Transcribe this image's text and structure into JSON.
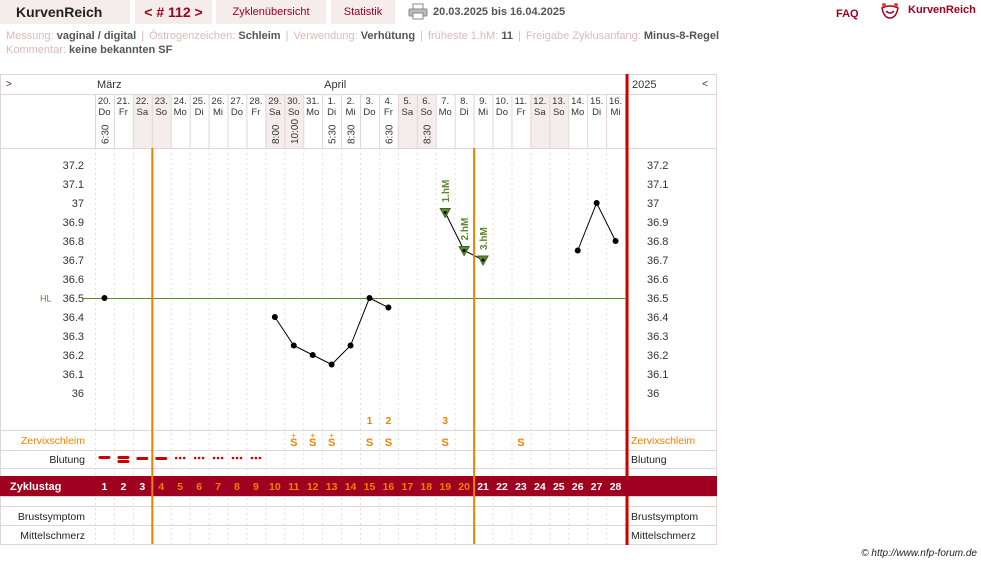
{
  "topbar": {
    "brand": "KurvenReich",
    "cycle_nav": "< # 112 >",
    "cycle_overview": "Zyklenübersicht",
    "statistics": "Statistik",
    "date_range": "20.03.2025 bis 16.04.2025",
    "faq": "FAQ",
    "logo_text": "KurvenReich"
  },
  "info": {
    "measurement_label": "Messung:",
    "measurement_value": "vaginal / digital",
    "estrogen_label": "Östrogenzeichen:",
    "estrogen_value": "Schleim",
    "usage_label": "Verwendung:",
    "usage_value": "Verhütung",
    "earliest_label": "früheste 1.hM:",
    "earliest_value": "11",
    "release_label": "Freigabe Zyklusanfang:",
    "release_value": "Minus-8-Regel",
    "comment_label": "Kommentar:",
    "comment_value": "keine bekannten SF"
  },
  "chart_data": {
    "type": "line",
    "header_left": ">",
    "header_right_arrow": "<",
    "year": "2025",
    "months": [
      {
        "label": "März",
        "day_index": 0
      },
      {
        "label": "April",
        "day_index": 12
      }
    ],
    "dates": [
      "20.",
      "21.",
      "22.",
      "23.",
      "24.",
      "25.",
      "26.",
      "27.",
      "28.",
      "29.",
      "30.",
      "31.",
      "1.",
      "2.",
      "3.",
      "4.",
      "5.",
      "6.",
      "7.",
      "8.",
      "9.",
      "10.",
      "11.",
      "12.",
      "13.",
      "14.",
      "15.",
      "16."
    ],
    "weekdays": [
      "Do",
      "Fr",
      "Sa",
      "So",
      "Mo",
      "Di",
      "Mi",
      "Do",
      "Fr",
      "Sa",
      "So",
      "Mo",
      "Di",
      "Mi",
      "Do",
      "Fr",
      "Sa",
      "So",
      "Mo",
      "Di",
      "Mi",
      "Do",
      "Fr",
      "Sa",
      "So",
      "Mo",
      "Di",
      "Mi"
    ],
    "weekend_days": [
      2,
      3,
      9,
      10,
      16,
      17,
      23,
      24
    ],
    "times": [
      "6:30",
      "",
      "",
      "",
      "",
      "",
      "",
      "",
      "",
      "8:00",
      "10:00",
      "",
      "5:30",
      "8:30",
      "",
      "6:30",
      "",
      "8:30",
      "",
      "",
      "",
      "",
      "",
      "",
      "",
      "",
      "",
      ""
    ],
    "cycle_days": [
      "1",
      "2",
      "3",
      "4",
      "5",
      "6",
      "7",
      "8",
      "9",
      "10",
      "11",
      "12",
      "13",
      "14",
      "15",
      "16",
      "17",
      "18",
      "19",
      "20",
      "21",
      "22",
      "23",
      "24",
      "25",
      "26",
      "27",
      "28"
    ],
    "y_ticks": [
      "37.2",
      "37.1",
      "37",
      "36.9",
      "36.8",
      "36.7",
      "36.6",
      "36.5",
      "36.4",
      "36.3",
      "36.2",
      "36.1",
      "36"
    ],
    "ylim": [
      36.0,
      37.2
    ],
    "temperatures": [
      36.5,
      null,
      null,
      null,
      null,
      null,
      null,
      null,
      null,
      36.4,
      36.25,
      36.2,
      36.15,
      36.25,
      36.5,
      36.45,
      null,
      null,
      36.95,
      36.75,
      36.7,
      null,
      null,
      null,
      null,
      36.75,
      37.0,
      36.8
    ],
    "line_segments": [
      [
        9,
        15
      ],
      [
        18,
        20
      ],
      [
        25,
        27
      ]
    ],
    "hl_label": "HL",
    "hl_value": 36.5,
    "high_measurements": [
      {
        "day": 18,
        "label": "1.hM"
      },
      {
        "day": 19,
        "label": "2.hM"
      },
      {
        "day": 20,
        "label": "3.hM"
      }
    ],
    "cycle_start_lines": [
      3,
      20
    ],
    "cycle_end_line": 28,
    "mucus_numbers": [
      {
        "day": 14,
        "label": "1"
      },
      {
        "day": 15,
        "label": "2"
      },
      {
        "day": 18,
        "label": "3"
      }
    ],
    "mucus": [
      "",
      "",
      "",
      "",
      "",
      "",
      "",
      "",
      "",
      "",
      "S+",
      "S+",
      "S+",
      "",
      "S",
      "S",
      "",
      "",
      "S",
      "",
      "",
      "",
      "S",
      "",
      "",
      "",
      "",
      ""
    ],
    "bleeding": [
      "heavy",
      "heavy",
      "medium",
      "medium",
      "spot",
      "spot",
      "spot",
      "spot",
      "spot",
      "",
      "",
      "",
      "",
      "",
      "",
      "",
      "",
      "",
      "",
      "",
      "",
      "",
      "",
      "",
      "",
      "",
      "",
      ""
    ],
    "rows": {
      "mucus": "Zervixschleim",
      "bleeding": "Blutung",
      "cycle_day": "Zyklustag",
      "breast": "Brustsymptom",
      "mittelschmerz": "Mittelschmerz"
    },
    "colors": {
      "accent": "#a00020",
      "orange": "#f08000",
      "green": "#5a8a2a",
      "grid": "#e2d4d4",
      "weekend": "#f5ecec"
    }
  },
  "footer": {
    "copyright": "© http://www.nfp-forum.de"
  }
}
